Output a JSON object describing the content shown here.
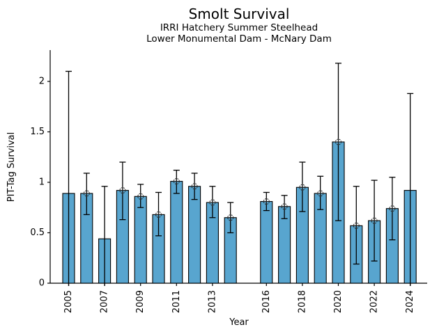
{
  "figure": {
    "title": "Smolt Survival",
    "subtitle1": "IRRI Hatchery Summer Steelhead",
    "subtitle2": "Lower Monumental Dam - McNary Dam"
  },
  "chart_data": {
    "type": "bar",
    "title": "Smolt Survival",
    "subtitles": [
      "IRRI Hatchery Summer Steelhead",
      "Lower Monumental Dam - McNary Dam"
    ],
    "xlabel": "Year",
    "ylabel": "PIT-Tag Survival",
    "ylim": [
      0,
      2.31
    ],
    "yticks": [
      0,
      0.5,
      1,
      1.5,
      2
    ],
    "ytick_labels": [
      "0",
      "0.5",
      "1",
      "1.5",
      "2"
    ],
    "xtick_years": [
      2005,
      2007,
      2009,
      2011,
      2013,
      2016,
      2018,
      2020,
      2022,
      2024
    ],
    "grid": false,
    "legend": "none",
    "bar_color": "#58a5cf",
    "bar_edge_color": "#000000",
    "error_bar_color": "#000000",
    "marker_shape": "circle-plus",
    "points": [
      {
        "year": 2005,
        "value": 0.89,
        "err_lo": 0.0,
        "err_hi": 2.1,
        "marker": false,
        "lo_capped": false
      },
      {
        "year": 2006,
        "value": 0.89,
        "err_lo": 0.68,
        "err_hi": 1.09,
        "marker": true,
        "lo_capped": true
      },
      {
        "year": 2007,
        "value": 0.44,
        "err_lo": 0.0,
        "err_hi": 0.96,
        "marker": false,
        "lo_capped": false
      },
      {
        "year": 2008,
        "value": 0.92,
        "err_lo": 0.63,
        "err_hi": 1.2,
        "marker": true,
        "lo_capped": true
      },
      {
        "year": 2009,
        "value": 0.86,
        "err_lo": 0.75,
        "err_hi": 0.98,
        "marker": true,
        "lo_capped": true
      },
      {
        "year": 2010,
        "value": 0.68,
        "err_lo": 0.47,
        "err_hi": 0.9,
        "marker": true,
        "lo_capped": true
      },
      {
        "year": 2011,
        "value": 1.01,
        "err_lo": 0.89,
        "err_hi": 1.12,
        "marker": true,
        "lo_capped": true
      },
      {
        "year": 2012,
        "value": 0.96,
        "err_lo": 0.83,
        "err_hi": 1.09,
        "marker": true,
        "lo_capped": true
      },
      {
        "year": 2013,
        "value": 0.8,
        "err_lo": 0.65,
        "err_hi": 0.96,
        "marker": true,
        "lo_capped": true
      },
      {
        "year": 2014,
        "value": 0.65,
        "err_lo": 0.5,
        "err_hi": 0.8,
        "marker": true,
        "lo_capped": true
      },
      {
        "year": 2016,
        "value": 0.81,
        "err_lo": 0.72,
        "err_hi": 0.9,
        "marker": true,
        "lo_capped": true
      },
      {
        "year": 2017,
        "value": 0.76,
        "err_lo": 0.64,
        "err_hi": 0.87,
        "marker": true,
        "lo_capped": true
      },
      {
        "year": 2018,
        "value": 0.95,
        "err_lo": 0.71,
        "err_hi": 1.2,
        "marker": true,
        "lo_capped": true
      },
      {
        "year": 2019,
        "value": 0.89,
        "err_lo": 0.73,
        "err_hi": 1.06,
        "marker": true,
        "lo_capped": true
      },
      {
        "year": 2020,
        "value": 1.4,
        "err_lo": 0.62,
        "err_hi": 2.18,
        "marker": true,
        "lo_capped": true
      },
      {
        "year": 2021,
        "value": 0.57,
        "err_lo": 0.19,
        "err_hi": 0.96,
        "marker": true,
        "lo_capped": true
      },
      {
        "year": 2022,
        "value": 0.62,
        "err_lo": 0.22,
        "err_hi": 1.02,
        "marker": true,
        "lo_capped": true
      },
      {
        "year": 2023,
        "value": 0.74,
        "err_lo": 0.43,
        "err_hi": 1.05,
        "marker": true,
        "lo_capped": true
      },
      {
        "year": 2024,
        "value": 0.92,
        "err_lo": 0.0,
        "err_hi": 1.88,
        "marker": false,
        "lo_capped": false
      }
    ]
  }
}
